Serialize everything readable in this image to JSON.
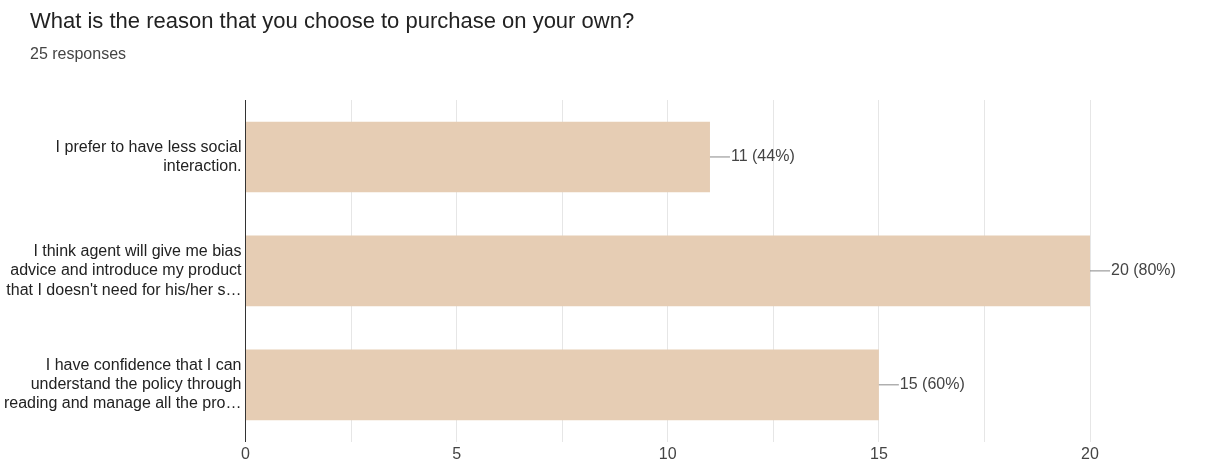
{
  "chart_data": {
    "type": "bar",
    "orientation": "horizontal",
    "title": "What is the reason that you choose to purchase on your own?",
    "subtitle": "25 responses",
    "categories": [
      "I prefer to have less social interaction.",
      "I think agent will give me bias advice and introduce my product that I doesn't need for his/her s…",
      "I have confidence that I can understand the policy through reading and manage all the pro…"
    ],
    "values": [
      11,
      20,
      15
    ],
    "color": "#e6cdb4",
    "value_labels": [
      "11 (44%)",
      "20 (80%)",
      "15 (60%)"
    ],
    "xlim": [
      0,
      20
    ],
    "xticks": [
      0,
      {
        "value": 2.5,
        "label": null
      },
      5,
      {
        "value": 7.5,
        "label": null
      },
      10,
      {
        "value": 12.5,
        "label": null
      },
      15,
      {
        "value": 17.5,
        "label": null
      },
      20
    ],
    "grid": "x",
    "legend": false
  }
}
